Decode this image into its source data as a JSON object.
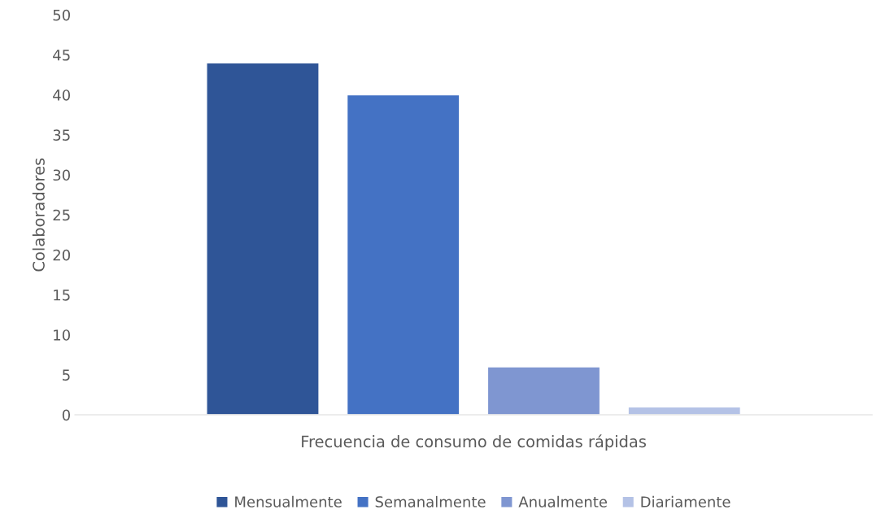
{
  "chart_data": {
    "type": "bar",
    "categories": [
      null
    ],
    "xlabel": "Frecuencia de consumo de comidas rápidas",
    "ylabel": "Colaboradores",
    "series": [
      {
        "name": "Mensualmente",
        "color": "#2f5597",
        "values": [
          44
        ]
      },
      {
        "name": "Semanalmente",
        "color": "#4472c4",
        "values": [
          40
        ]
      },
      {
        "name": "Anualmente",
        "color": "#7f96d1",
        "values": [
          6
        ]
      },
      {
        "name": "Diariamente",
        "color": "#b4c2e6",
        "values": [
          1
        ]
      }
    ],
    "ylim": [
      0,
      50
    ],
    "yticks": [
      0,
      5,
      10,
      15,
      20,
      25,
      30,
      35,
      40,
      45,
      50
    ],
    "grid": false,
    "legend": "bottom"
  }
}
